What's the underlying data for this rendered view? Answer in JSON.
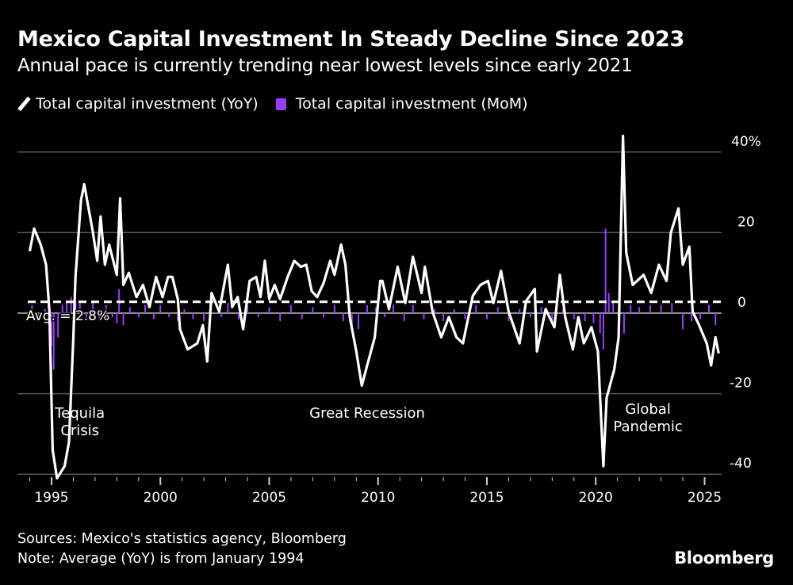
{
  "title": "Mexico Capital Investment In Steady Decline Since 2023",
  "subtitle": "Annual pace is currently trending near lowest levels since early 2021",
  "sources": "Sources: Mexico's statistics agency, Bloomberg",
  "note": "Note: Average (YoY) is from January 1994",
  "brand": "Bloomberg",
  "chart_data": {
    "type": "line+bar",
    "colors": {
      "yoy": "#ffffff",
      "mom": "#9a3cff",
      "grid": "#555555",
      "background": "#000000"
    },
    "legend_placement": "top-left",
    "grid": true,
    "xlim": [
      1993.5,
      2026.0
    ],
    "ylim": [
      -40,
      44
    ],
    "x_ticks": [
      1995,
      2000,
      2005,
      2010,
      2015,
      2020,
      2025
    ],
    "x_tick_labels": [
      "1995",
      "2000",
      "2005",
      "2010",
      "2015",
      "2020",
      "2025"
    ],
    "y_ticks": [
      40,
      20,
      0,
      -20,
      -40
    ],
    "y_tick_labels": [
      "40%",
      "20",
      "0",
      "-20",
      "-40"
    ],
    "y_axis_side": "right",
    "average": {
      "value": 2.8,
      "label": "Avg. = 2.8%"
    },
    "annotations": [
      {
        "lines": [
          "Tequila",
          "Crisis"
        ],
        "x": 1996.3,
        "y": -26
      },
      {
        "lines": [
          "Great Recession"
        ],
        "x": 2009.5,
        "y": -26
      },
      {
        "lines": [
          "Global",
          "Pandemic"
        ],
        "x": 2022.4,
        "y": -25
      }
    ],
    "series": [
      {
        "name": "Total capital investment (YoY)",
        "kind": "line",
        "points": [
          [
            1994.0,
            15.4
          ],
          [
            1994.2,
            21
          ],
          [
            1994.5,
            17
          ],
          [
            1994.75,
            12
          ],
          [
            1994.9,
            0.5
          ],
          [
            1995.05,
            -34
          ],
          [
            1995.25,
            -41
          ],
          [
            1995.6,
            -38
          ],
          [
            1995.8,
            -32
          ],
          [
            1996.0,
            -6
          ],
          [
            1996.1,
            9
          ],
          [
            1996.35,
            28
          ],
          [
            1996.5,
            32
          ],
          [
            1996.7,
            26
          ],
          [
            1996.9,
            20
          ],
          [
            1997.1,
            13
          ],
          [
            1997.25,
            24
          ],
          [
            1997.45,
            12
          ],
          [
            1997.65,
            17
          ],
          [
            1998.0,
            9.5
          ],
          [
            1998.15,
            28.5
          ],
          [
            1998.3,
            7
          ],
          [
            1998.55,
            10
          ],
          [
            1998.9,
            4
          ],
          [
            1999.2,
            7
          ],
          [
            1999.5,
            1.5
          ],
          [
            1999.8,
            9
          ],
          [
            2000.1,
            4
          ],
          [
            2000.35,
            9
          ],
          [
            2000.55,
            9
          ],
          [
            2000.8,
            3.5
          ],
          [
            2000.9,
            -4
          ],
          [
            2001.25,
            -9
          ],
          [
            2001.7,
            -7.5
          ],
          [
            2001.95,
            -3
          ],
          [
            2002.15,
            -12
          ],
          [
            2002.35,
            5
          ],
          [
            2002.7,
            0.4
          ],
          [
            2003.1,
            12
          ],
          [
            2003.3,
            1.5
          ],
          [
            2003.55,
            4
          ],
          [
            2003.8,
            -4
          ],
          [
            2004.1,
            8
          ],
          [
            2004.4,
            9
          ],
          [
            2004.6,
            4
          ],
          [
            2004.8,
            13
          ],
          [
            2005.0,
            3.5
          ],
          [
            2005.25,
            7
          ],
          [
            2005.5,
            3.5
          ],
          [
            2005.85,
            9
          ],
          [
            2006.15,
            13
          ],
          [
            2006.45,
            11.5
          ],
          [
            2006.7,
            12
          ],
          [
            2006.95,
            5.5
          ],
          [
            2007.2,
            4
          ],
          [
            2007.5,
            7.5
          ],
          [
            2007.8,
            13
          ],
          [
            2008.0,
            9.5
          ],
          [
            2008.3,
            17
          ],
          [
            2008.5,
            12
          ],
          [
            2008.7,
            -1
          ],
          [
            2009.0,
            -9.5
          ],
          [
            2009.25,
            -18
          ],
          [
            2009.5,
            -13
          ],
          [
            2009.85,
            -6
          ],
          [
            2010.1,
            8
          ],
          [
            2010.2,
            8
          ],
          [
            2010.5,
            1
          ],
          [
            2010.9,
            11.5
          ],
          [
            2011.25,
            2.5
          ],
          [
            2011.6,
            14
          ],
          [
            2012.0,
            5
          ],
          [
            2012.15,
            11.5
          ],
          [
            2012.5,
            0.4
          ],
          [
            2012.9,
            -6
          ],
          [
            2013.25,
            -1
          ],
          [
            2013.6,
            -6
          ],
          [
            2013.9,
            -7.5
          ],
          [
            2014.35,
            4.3
          ],
          [
            2014.7,
            7
          ],
          [
            2015.05,
            8
          ],
          [
            2015.3,
            2.5
          ],
          [
            2015.65,
            10.5
          ],
          [
            2016.0,
            0.4
          ],
          [
            2016.5,
            -7.5
          ],
          [
            2016.8,
            3
          ],
          [
            2017.2,
            6
          ],
          [
            2017.3,
            -9.5
          ],
          [
            2017.7,
            1
          ],
          [
            2018.1,
            -3.5
          ],
          [
            2018.35,
            9.5
          ],
          [
            2018.6,
            -1
          ],
          [
            2018.95,
            -9
          ],
          [
            2019.2,
            -1
          ],
          [
            2019.45,
            -7.5
          ],
          [
            2019.8,
            -3.5
          ],
          [
            2020.1,
            -9.5
          ],
          [
            2020.35,
            -38
          ],
          [
            2020.5,
            -21
          ],
          [
            2020.85,
            -14
          ],
          [
            2021.05,
            -6
          ],
          [
            2021.25,
            44
          ],
          [
            2021.4,
            15
          ],
          [
            2021.7,
            7
          ],
          [
            2022.2,
            9.5
          ],
          [
            2022.55,
            5
          ],
          [
            2022.9,
            12
          ],
          [
            2023.25,
            8
          ],
          [
            2023.45,
            20
          ],
          [
            2023.8,
            26
          ],
          [
            2024.0,
            12
          ],
          [
            2024.3,
            16.5
          ],
          [
            2024.45,
            0.4
          ],
          [
            2024.75,
            -3
          ],
          [
            2025.1,
            -7.5
          ],
          [
            2025.3,
            -13
          ],
          [
            2025.5,
            -6
          ],
          [
            2025.65,
            -10
          ]
        ]
      },
      {
        "name": "Total capital investment (MoM)",
        "kind": "bar",
        "points": [
          [
            1994.1,
            2
          ],
          [
            1994.4,
            -1.5
          ],
          [
            1994.7,
            1
          ],
          [
            1994.9,
            -3
          ],
          [
            1995.0,
            -8
          ],
          [
            1995.1,
            -14
          ],
          [
            1995.3,
            -6
          ],
          [
            1995.5,
            2
          ],
          [
            1995.7,
            3
          ],
          [
            1995.9,
            4
          ],
          [
            1996.1,
            3
          ],
          [
            1996.3,
            2.5
          ],
          [
            1996.6,
            -1.5
          ],
          [
            1996.9,
            3
          ],
          [
            1997.2,
            -2
          ],
          [
            1997.5,
            2
          ],
          [
            1997.8,
            -1
          ],
          [
            1998.0,
            -2.5
          ],
          [
            1998.1,
            6
          ],
          [
            1998.3,
            -3
          ],
          [
            1998.6,
            1.5
          ],
          [
            1999.0,
            -1
          ],
          [
            1999.3,
            2
          ],
          [
            1999.7,
            -1.5
          ],
          [
            2000.0,
            2
          ],
          [
            2000.4,
            -1
          ],
          [
            2000.8,
            -2
          ],
          [
            2001.1,
            1
          ],
          [
            2001.5,
            -1.5
          ],
          [
            2002.0,
            -2
          ],
          [
            2002.3,
            3
          ],
          [
            2002.8,
            -1
          ],
          [
            2003.1,
            2.5
          ],
          [
            2003.6,
            -1.5
          ],
          [
            2004.0,
            2
          ],
          [
            2004.5,
            -1
          ],
          [
            2005.0,
            1.5
          ],
          [
            2005.5,
            -2
          ],
          [
            2006.0,
            2
          ],
          [
            2006.5,
            -1.5
          ],
          [
            2007.0,
            1.5
          ],
          [
            2007.5,
            -1
          ],
          [
            2008.0,
            2
          ],
          [
            2008.4,
            -2
          ],
          [
            2008.8,
            -3
          ],
          [
            2009.1,
            -4
          ],
          [
            2009.5,
            2
          ],
          [
            2009.9,
            1.5
          ],
          [
            2010.3,
            -1
          ],
          [
            2010.7,
            2
          ],
          [
            2011.2,
            -2
          ],
          [
            2011.6,
            2
          ],
          [
            2012.1,
            -1.5
          ],
          [
            2012.6,
            1
          ],
          [
            2013.0,
            -2
          ],
          [
            2013.5,
            1
          ],
          [
            2014.0,
            -1.5
          ],
          [
            2014.5,
            2
          ],
          [
            2015.0,
            -1.5
          ],
          [
            2015.5,
            1.5
          ],
          [
            2016.0,
            -2
          ],
          [
            2016.5,
            1
          ],
          [
            2017.0,
            -1
          ],
          [
            2017.5,
            1.5
          ],
          [
            2018.0,
            -2
          ],
          [
            2018.5,
            1
          ],
          [
            2019.0,
            -1.5
          ],
          [
            2019.5,
            -2
          ],
          [
            2019.9,
            -2.5
          ],
          [
            2020.2,
            -5
          ],
          [
            2020.35,
            -9
          ],
          [
            2020.45,
            21
          ],
          [
            2020.6,
            5
          ],
          [
            2020.8,
            3
          ],
          [
            2021.1,
            3.5
          ],
          [
            2021.3,
            -5
          ],
          [
            2021.6,
            2
          ],
          [
            2022.0,
            1.5
          ],
          [
            2022.5,
            2
          ],
          [
            2023.0,
            2
          ],
          [
            2023.5,
            2.5
          ],
          [
            2024.0,
            -4
          ],
          [
            2024.4,
            -2
          ],
          [
            2024.8,
            -1.5
          ],
          [
            2025.2,
            2
          ],
          [
            2025.5,
            -3
          ]
        ]
      }
    ]
  }
}
